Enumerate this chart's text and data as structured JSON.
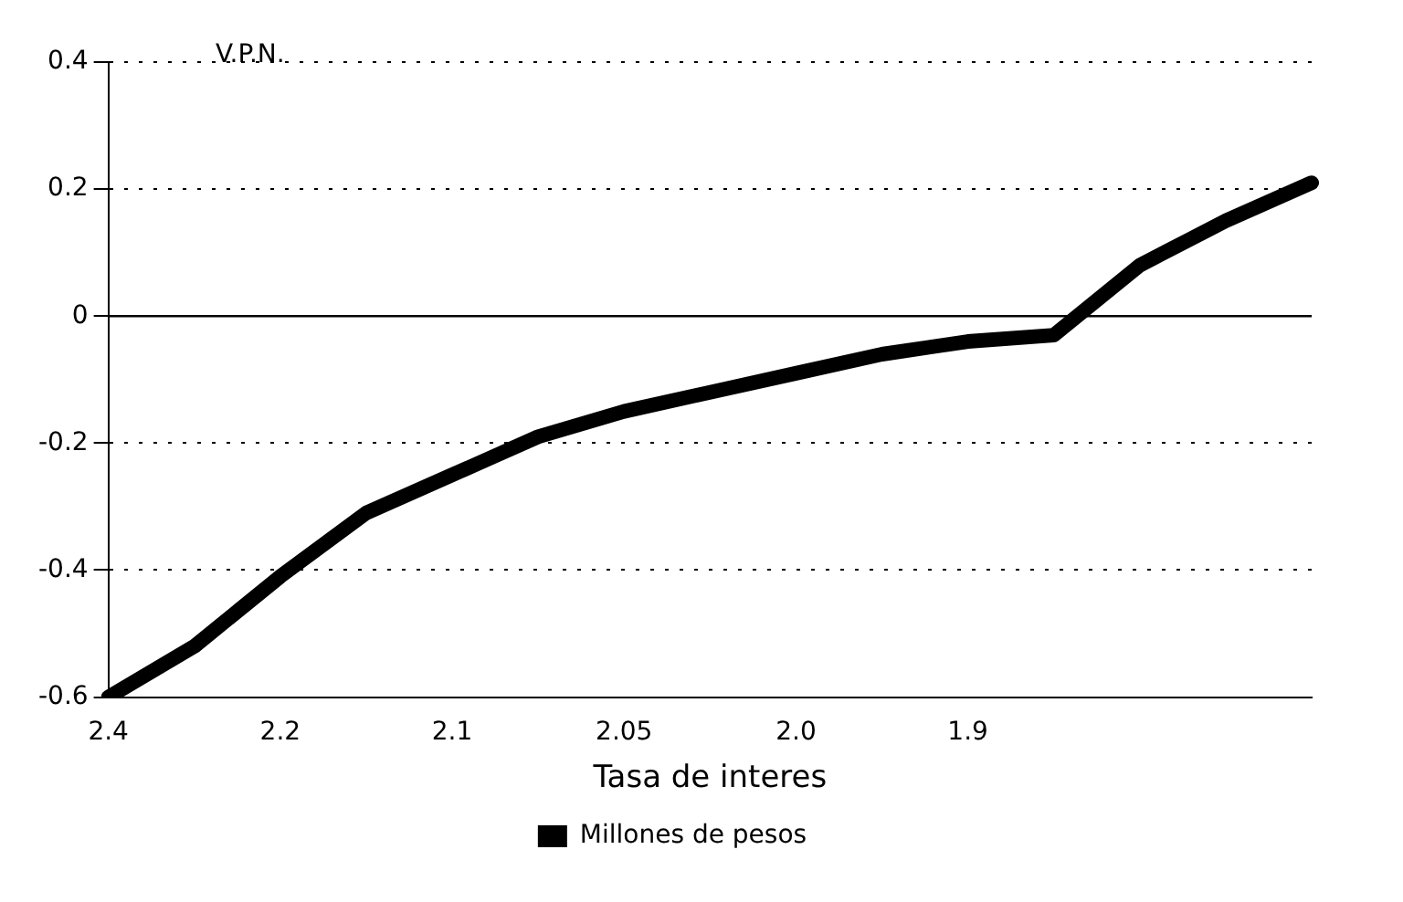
{
  "chart_data": {
    "type": "line",
    "ylabel": "V.P.N.",
    "xlabel": "Tasa de interes",
    "categories": [
      "2.4",
      null,
      "2.2",
      null,
      "2.1",
      null,
      "2.05",
      null,
      "2.0",
      null,
      "1.9",
      null,
      null,
      null,
      null
    ],
    "series": [
      {
        "name": "Millones de pesos",
        "color": "#000000",
        "values": [
          -0.6,
          -0.52,
          -0.41,
          -0.31,
          -0.25,
          -0.19,
          -0.15,
          -0.12,
          -0.09,
          -0.06,
          -0.04,
          -0.03,
          0.08,
          0.15,
          0.21
        ]
      }
    ],
    "ylim": [
      -0.6,
      0.4
    ],
    "yticks": [
      -0.6,
      -0.4,
      -0.2,
      0,
      0.2,
      0.4
    ],
    "grid": "y",
    "legend": "bottom",
    "marker": "none",
    "line_style": "solid",
    "ref_lines": [
      {
        "axis": "y",
        "value": 0,
        "color": "#000000",
        "line_style": "solid"
      }
    ]
  }
}
